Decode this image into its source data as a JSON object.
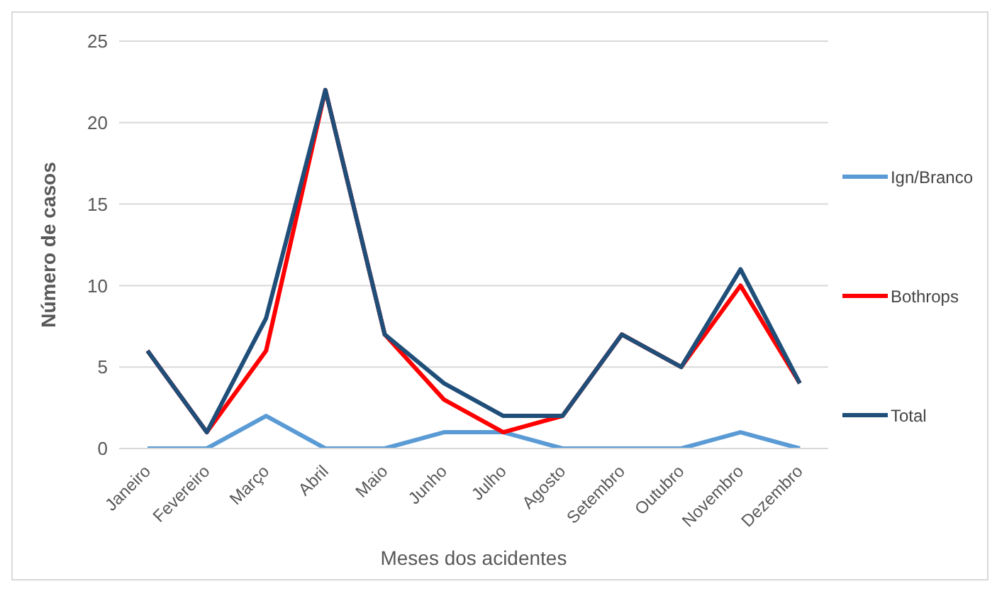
{
  "chart_data": {
    "type": "line",
    "xlabel": "Meses dos acidentes",
    "ylabel": "Número de casos",
    "categories": [
      "Janeiro",
      "Fevereiro",
      "Março",
      "Abril",
      "Maio",
      "Junho",
      "Julho",
      "Agosto",
      "Setembro",
      "Outubro",
      "Novembro",
      "Dezembro"
    ],
    "series": [
      {
        "name": "Ign/Branco",
        "color": "#5b9bd5",
        "values": [
          0,
          0,
          2,
          0,
          0,
          1,
          1,
          0,
          0,
          0,
          1,
          0
        ]
      },
      {
        "name": "Bothrops",
        "color": "#ff0000",
        "values": [
          6,
          1,
          6,
          22,
          7,
          3,
          1,
          2,
          7,
          5,
          10,
          4
        ]
      },
      {
        "name": "Total",
        "color": "#1f4e79",
        "values": [
          6,
          1,
          8,
          22,
          7,
          4,
          2,
          2,
          7,
          5,
          11,
          4
        ]
      }
    ],
    "ylim": [
      0,
      25
    ],
    "yticks": [
      0,
      5,
      10,
      15,
      20,
      25
    ],
    "grid": "y",
    "legend": "right",
    "marker": "none",
    "line_style": "solid"
  }
}
